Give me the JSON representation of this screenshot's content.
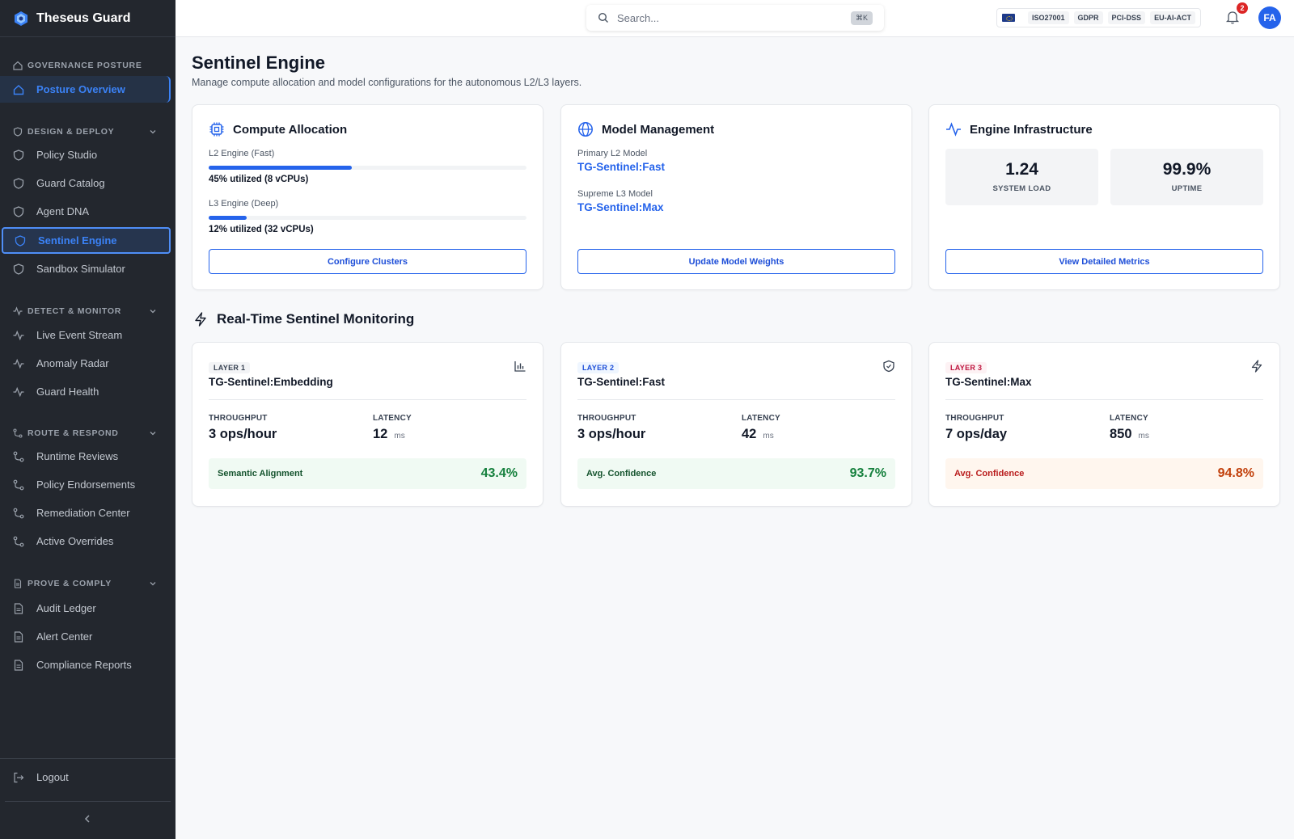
{
  "app": {
    "name": "Theseus Guard"
  },
  "sidebar": {
    "sections": [
      {
        "title": "GOVERNANCE POSTURE",
        "items": [
          {
            "label": "Posture Overview"
          }
        ]
      },
      {
        "title": "DESIGN & DEPLOY",
        "items": [
          {
            "label": "Policy Studio"
          },
          {
            "label": "Guard Catalog"
          },
          {
            "label": "Agent DNA"
          },
          {
            "label": "Sentinel Engine"
          },
          {
            "label": "Sandbox Simulator"
          }
        ]
      },
      {
        "title": "DETECT & MONITOR",
        "items": [
          {
            "label": "Live Event Stream"
          },
          {
            "label": "Anomaly Radar"
          },
          {
            "label": "Guard Health"
          }
        ]
      },
      {
        "title": "ROUTE & RESPOND",
        "items": [
          {
            "label": "Runtime Reviews"
          },
          {
            "label": "Policy Endorsements"
          },
          {
            "label": "Remediation Center"
          },
          {
            "label": "Active Overrides"
          }
        ]
      },
      {
        "title": "PROVE & COMPLY",
        "items": [
          {
            "label": "Audit Ledger"
          },
          {
            "label": "Alert Center"
          },
          {
            "label": "Compliance Reports"
          }
        ]
      }
    ],
    "logout": "Logout"
  },
  "topbar": {
    "search_placeholder": "Search...",
    "search_shortcut": "⌘K",
    "compliance_badges": [
      "ISO27001",
      "GDPR",
      "PCI-DSS",
      "EU-AI-ACT"
    ],
    "notification_count": "2",
    "avatar_initials": "FA"
  },
  "page": {
    "title": "Sentinel Engine",
    "subtitle": "Manage compute allocation and model configurations for the autonomous L2/L3 layers."
  },
  "compute": {
    "title": "Compute Allocation",
    "l2_label": "L2 Engine (Fast)",
    "l2_util_value": 45,
    "l2_util_text": "45% utilized (8 vCPUs)",
    "l3_label": "L3 Engine (Deep)",
    "l3_util_value": 12,
    "l3_util_text": "12% utilized (32 vCPUs)",
    "button": "Configure Clusters"
  },
  "models": {
    "title": "Model Management",
    "primary_label": "Primary L2 Model",
    "primary_value": "TG-Sentinel:Fast",
    "supreme_label": "Supreme L3 Model",
    "supreme_value": "TG-Sentinel:Max",
    "button": "Update Model Weights"
  },
  "infra": {
    "title": "Engine Infrastructure",
    "load_value": "1.24",
    "load_label": "SYSTEM LOAD",
    "uptime_value": "99.9%",
    "uptime_label": "UPTIME",
    "button": "View Detailed Metrics"
  },
  "monitoring": {
    "title": "Real-Time Sentinel Monitoring",
    "layers": [
      {
        "badge": "LAYER 1",
        "name": "TG-Sentinel:Embedding",
        "throughput_label": "THROUGHPUT",
        "throughput": "3 ops/hour",
        "latency_label": "LATENCY",
        "latency": "12",
        "latency_unit": "ms",
        "metric_label": "Semantic Alignment",
        "metric_value": "43.4%",
        "icon": "bar-chart-icon"
      },
      {
        "badge": "LAYER 2",
        "name": "TG-Sentinel:Fast",
        "throughput_label": "THROUGHPUT",
        "throughput": "3 ops/hour",
        "latency_label": "LATENCY",
        "latency": "42",
        "latency_unit": "ms",
        "metric_label": "Avg. Confidence",
        "metric_value": "93.7%",
        "icon": "shield-icon"
      },
      {
        "badge": "LAYER 3",
        "name": "TG-Sentinel:Max",
        "throughput_label": "THROUGHPUT",
        "throughput": "7 ops/day",
        "latency_label": "LATENCY",
        "latency": "850",
        "latency_unit": "ms",
        "metric_label": "Avg. Confidence",
        "metric_value": "94.8%",
        "icon": "lightning-icon"
      }
    ]
  },
  "colors": {
    "accent": "#2563eb",
    "sidebar_bg": "#23272e",
    "success": "#15803d",
    "warning": "#c2410c"
  }
}
